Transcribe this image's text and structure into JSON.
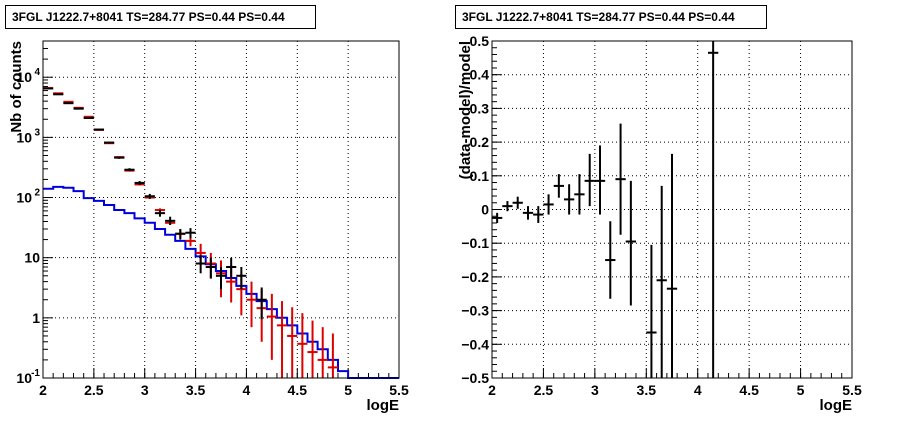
{
  "chart_data": [
    {
      "type": "step",
      "title": "3FGL J1222.7+8041 TS=284.77 PS=0.44 PS=0.44",
      "xlabel": "logE",
      "ylabel": "Nb of counts",
      "yscale": "log",
      "xlim": [
        2,
        5.5
      ],
      "ylim": [
        0.1,
        40000
      ],
      "grid": true,
      "x_ticks": [
        "2",
        "2.5",
        "3",
        "3.5",
        "4",
        "4.5",
        "5",
        "5.5"
      ],
      "y_ticks": [
        {
          "value": 0.1,
          "label": "10",
          "exp": "-1"
        },
        {
          "value": 1,
          "label": "1",
          "exp": ""
        },
        {
          "value": 10,
          "label": "10",
          "exp": ""
        },
        {
          "value": 100,
          "label": "10",
          "exp": "2"
        },
        {
          "value": 1000,
          "label": "10",
          "exp": "3"
        },
        {
          "value": 10000,
          "label": "10",
          "exp": "4"
        }
      ],
      "series": [
        {
          "style": "errorbar",
          "color": "#000000",
          "xhalf": 0.05,
          "points": [
            {
              "x": 2.05,
              "y": 6500,
              "lo": 6420,
              "hi": 6580
            },
            {
              "x": 2.15,
              "y": 5200,
              "lo": 5130,
              "hi": 5270
            },
            {
              "x": 2.25,
              "y": 3700,
              "lo": 3640,
              "hi": 3760
            },
            {
              "x": 2.35,
              "y": 3000,
              "lo": 2945,
              "hi": 3055
            },
            {
              "x": 2.45,
              "y": 2100,
              "lo": 2055,
              "hi": 2145
            },
            {
              "x": 2.55,
              "y": 1350,
              "lo": 1315,
              "hi": 1385
            },
            {
              "x": 2.65,
              "y": 820,
              "lo": 792,
              "hi": 848
            },
            {
              "x": 2.75,
              "y": 460,
              "lo": 440,
              "hi": 480
            },
            {
              "x": 2.85,
              "y": 290,
              "lo": 273,
              "hi": 307
            },
            {
              "x": 2.95,
              "y": 175,
              "lo": 162,
              "hi": 188
            },
            {
              "x": 3.05,
              "y": 105,
              "lo": 95,
              "hi": 115
            },
            {
              "x": 3.15,
              "y": 55,
              "lo": 48,
              "hi": 62
            },
            {
              "x": 3.25,
              "y": 41,
              "lo": 35,
              "hi": 48
            },
            {
              "x": 3.35,
              "y": 25,
              "lo": 20,
              "hi": 30
            },
            {
              "x": 3.45,
              "y": 26,
              "lo": 21,
              "hi": 31
            },
            {
              "x": 3.55,
              "y": 8,
              "lo": 5.5,
              "hi": 11
            },
            {
              "x": 3.65,
              "y": 7,
              "lo": 4.5,
              "hi": 10
            },
            {
              "x": 3.75,
              "y": 5,
              "lo": 3,
              "hi": 7
            },
            {
              "x": 3.85,
              "y": 7,
              "lo": 4.5,
              "hi": 10
            },
            {
              "x": 3.95,
              "y": 5,
              "lo": 3,
              "hi": 7
            },
            {
              "x": 4.15,
              "y": 2,
              "lo": 0.95,
              "hi": 3.2
            }
          ]
        },
        {
          "style": "errorbar",
          "color": "#dd0000",
          "xhalf": 0.05,
          "points": [
            {
              "x": 2.05,
              "y": 6600,
              "lo": 6600,
              "hi": 6600
            },
            {
              "x": 2.15,
              "y": 5400,
              "lo": 5400,
              "hi": 5400
            },
            {
              "x": 2.25,
              "y": 3900,
              "lo": 3900,
              "hi": 3900
            },
            {
              "x": 2.35,
              "y": 3100,
              "lo": 3100,
              "hi": 3100
            },
            {
              "x": 2.45,
              "y": 2200,
              "lo": 2200,
              "hi": 2200
            },
            {
              "x": 2.55,
              "y": 1330,
              "lo": 1330,
              "hi": 1330
            },
            {
              "x": 2.65,
              "y": 800,
              "lo": 800,
              "hi": 800
            },
            {
              "x": 2.75,
              "y": 470,
              "lo": 470,
              "hi": 470
            },
            {
              "x": 2.85,
              "y": 280,
              "lo": 275,
              "hi": 285
            },
            {
              "x": 2.95,
              "y": 165,
              "lo": 160,
              "hi": 170
            },
            {
              "x": 3.05,
              "y": 100,
              "lo": 96,
              "hi": 104
            },
            {
              "x": 3.15,
              "y": 62,
              "lo": 58,
              "hi": 66
            },
            {
              "x": 3.25,
              "y": 38,
              "lo": 35,
              "hi": 41
            },
            {
              "x": 3.35,
              "y": 25,
              "lo": 21,
              "hi": 29
            },
            {
              "x": 3.45,
              "y": 19,
              "lo": 15.5,
              "hi": 23
            },
            {
              "x": 3.55,
              "y": 12,
              "lo": 7.5,
              "hi": 17
            },
            {
              "x": 3.65,
              "y": 8,
              "lo": 4.5,
              "hi": 12
            },
            {
              "x": 3.75,
              "y": 5.5,
              "lo": 2.2,
              "hi": 9
            },
            {
              "x": 3.85,
              "y": 4,
              "lo": 1.8,
              "hi": 7.5
            },
            {
              "x": 3.95,
              "y": 3,
              "lo": 1.1,
              "hi": 5.5
            },
            {
              "x": 4.05,
              "y": 2,
              "lo": 0.7,
              "hi": 4
            },
            {
              "x": 4.15,
              "y": 1.45,
              "lo": 0.4,
              "hi": 3
            },
            {
              "x": 4.25,
              "y": 1.05,
              "lo": 0.2,
              "hi": 2.5
            },
            {
              "x": 4.35,
              "y": 0.75,
              "lo": 0.1,
              "hi": 1.9
            },
            {
              "x": 4.45,
              "y": 0.5,
              "lo": 0.1,
              "hi": 1.5
            },
            {
              "x": 4.55,
              "y": 0.37,
              "lo": 0.1,
              "hi": 1.2
            },
            {
              "x": 4.65,
              "y": 0.27,
              "lo": 0.1,
              "hi": 0.9
            },
            {
              "x": 4.75,
              "y": 0.2,
              "lo": 0.1,
              "hi": 0.7
            },
            {
              "x": 4.85,
              "y": 0.15,
              "lo": 0.1,
              "hi": 0.55
            }
          ]
        },
        {
          "style": "step",
          "color": "#0000dd",
          "edges": [
            2.0,
            2.1,
            2.2,
            2.3,
            2.4,
            2.5,
            2.6,
            2.7,
            2.8,
            2.9,
            3.0,
            3.1,
            3.2,
            3.3,
            3.4,
            3.5,
            3.6,
            3.7,
            3.8,
            3.9,
            4.0,
            4.1,
            4.2,
            4.3,
            4.4,
            4.5,
            4.6,
            4.7,
            4.8,
            4.9,
            5.0,
            5.1,
            5.2,
            5.3,
            5.4,
            5.5
          ],
          "values": [
            140,
            150,
            145,
            128,
            98,
            88,
            75,
            62,
            55,
            45,
            38,
            30,
            24,
            19,
            14,
            10.5,
            7.8,
            6,
            4.6,
            3.4,
            2.5,
            1.9,
            1.4,
            1.0,
            0.75,
            0.55,
            0.4,
            0.3,
            0.2,
            0.13,
            0.1,
            0.1,
            0.1,
            0.1,
            0.1
          ]
        }
      ]
    },
    {
      "type": "errorbar",
      "title": "3FGL J1222.7+8041 TS=284.77 PS=0.44 PS=0.44",
      "xlabel": "logE",
      "ylabel": "(data-model)/model",
      "xlim": [
        2,
        5.5
      ],
      "ylim": [
        -0.5,
        0.5
      ],
      "grid": true,
      "x_ticks": [
        "2",
        "2.5",
        "3",
        "3.5",
        "4",
        "4.5",
        "5",
        "5.5"
      ],
      "y_ticks": [
        "−0.5",
        "−0.4",
        "−0.3",
        "−0.2",
        "−0.1",
        "0",
        "0.1",
        "0.2",
        "0.3",
        "0.4",
        "0.5"
      ],
      "y_tick_values": [
        -0.5,
        -0.4,
        -0.3,
        -0.2,
        -0.1,
        0,
        0.1,
        0.2,
        0.3,
        0.4,
        0.5
      ],
      "series": [
        {
          "color": "#000000",
          "xhalf": 0.05,
          "points": [
            {
              "x": 2.05,
              "y": -0.025,
              "lo": -0.04,
              "hi": -0.01
            },
            {
              "x": 2.15,
              "y": 0.01,
              "lo": -0.005,
              "hi": 0.025
            },
            {
              "x": 2.25,
              "y": 0.02,
              "lo": 0.002,
              "hi": 0.038
            },
            {
              "x": 2.35,
              "y": -0.01,
              "lo": -0.03,
              "hi": 0.01
            },
            {
              "x": 2.45,
              "y": -0.015,
              "lo": -0.04,
              "hi": 0.01
            },
            {
              "x": 2.55,
              "y": 0.015,
              "lo": -0.015,
              "hi": 0.045
            },
            {
              "x": 2.65,
              "y": 0.07,
              "lo": 0.035,
              "hi": 0.105
            },
            {
              "x": 2.75,
              "y": 0.03,
              "lo": -0.015,
              "hi": 0.075
            },
            {
              "x": 2.85,
              "y": 0.045,
              "lo": -0.015,
              "hi": 0.105
            },
            {
              "x": 2.95,
              "y": 0.085,
              "lo": 0.01,
              "hi": 0.165
            },
            {
              "x": 3.05,
              "y": 0.085,
              "lo": -0.015,
              "hi": 0.19
            },
            {
              "x": 3.15,
              "y": -0.15,
              "lo": -0.265,
              "hi": -0.035
            },
            {
              "x": 3.25,
              "y": 0.09,
              "lo": -0.075,
              "hi": 0.255
            },
            {
              "x": 3.35,
              "y": -0.095,
              "lo": -0.285,
              "hi": 0.085
            },
            {
              "x": 3.55,
              "y": -0.365,
              "lo": -0.5,
              "hi": -0.105
            },
            {
              "x": 3.65,
              "y": -0.21,
              "lo": -0.5,
              "hi": 0.07
            },
            {
              "x": 3.75,
              "y": -0.235,
              "lo": -0.5,
              "hi": 0.165
            },
            {
              "x": 4.15,
              "y": 0.465,
              "lo": -0.5,
              "hi": 0.5
            }
          ]
        }
      ]
    }
  ]
}
